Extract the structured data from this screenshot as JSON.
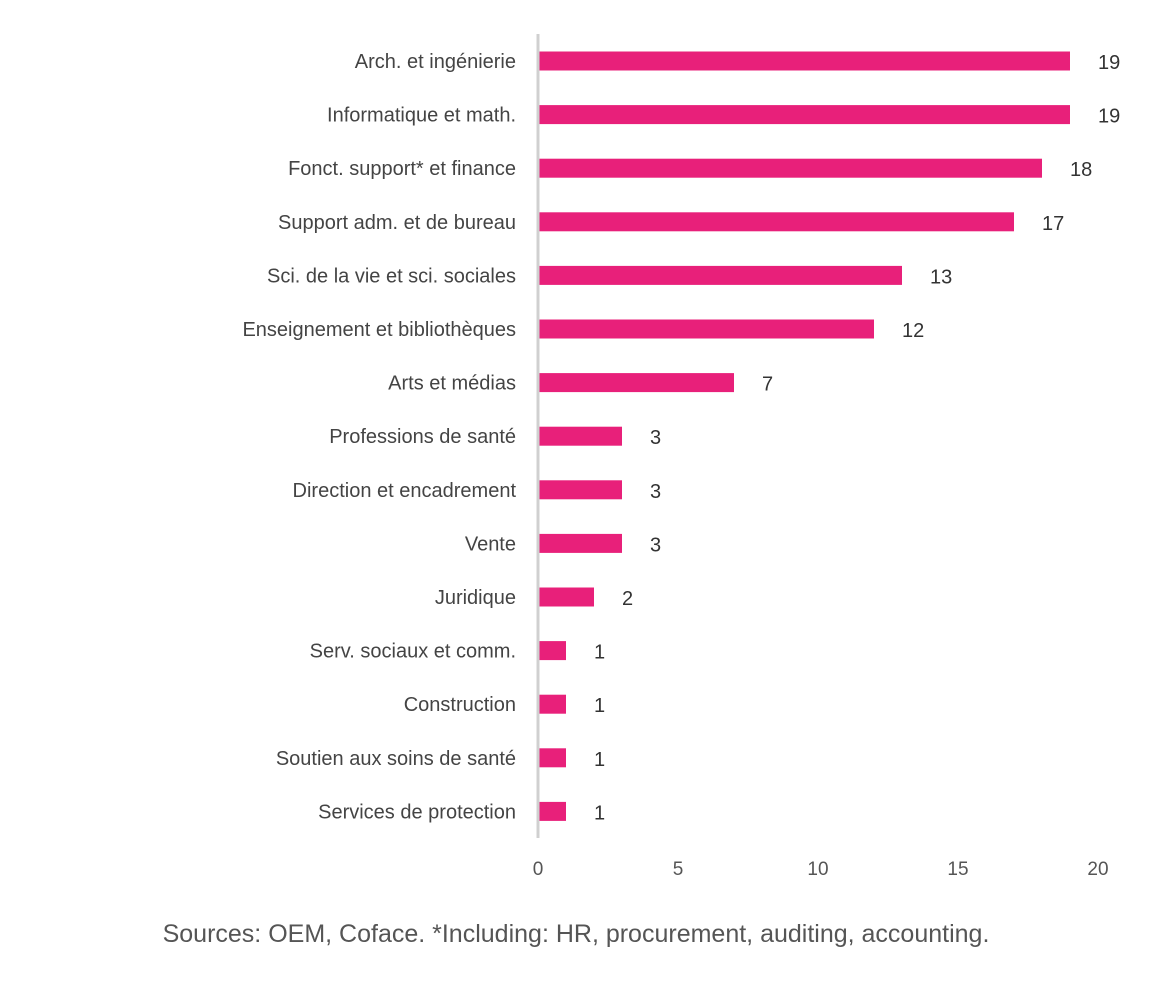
{
  "chart_data": {
    "type": "bar",
    "orientation": "horizontal",
    "categories": [
      "Arch. et ingénierie",
      "Informatique et math.",
      "Fonct. support* et finance",
      "Support adm. et de bureau",
      "Sci. de la vie et sci. sociales",
      "Enseignement et bibliothèques",
      "Arts et médias",
      "Professions de santé",
      "Direction et encadrement",
      "Vente",
      "Juridique",
      "Serv. sociaux et comm.",
      "Construction",
      "Soutien aux soins de santé",
      "Services de protection"
    ],
    "values": [
      19,
      19,
      18,
      17,
      13,
      12,
      7,
      3,
      3,
      3,
      2,
      1,
      1,
      1,
      1
    ],
    "xlim": [
      0,
      20
    ],
    "xticks": [
      0,
      5,
      10,
      15,
      20
    ],
    "title": "",
    "xlabel": "",
    "ylabel": "",
    "grid": false,
    "legend": "none",
    "bar_color": "#E8207A",
    "axis_color": "#D0D0D0"
  },
  "footer": {
    "source": "Sources: OEM, Coface. *Including: HR, procurement, auditing, accounting."
  }
}
